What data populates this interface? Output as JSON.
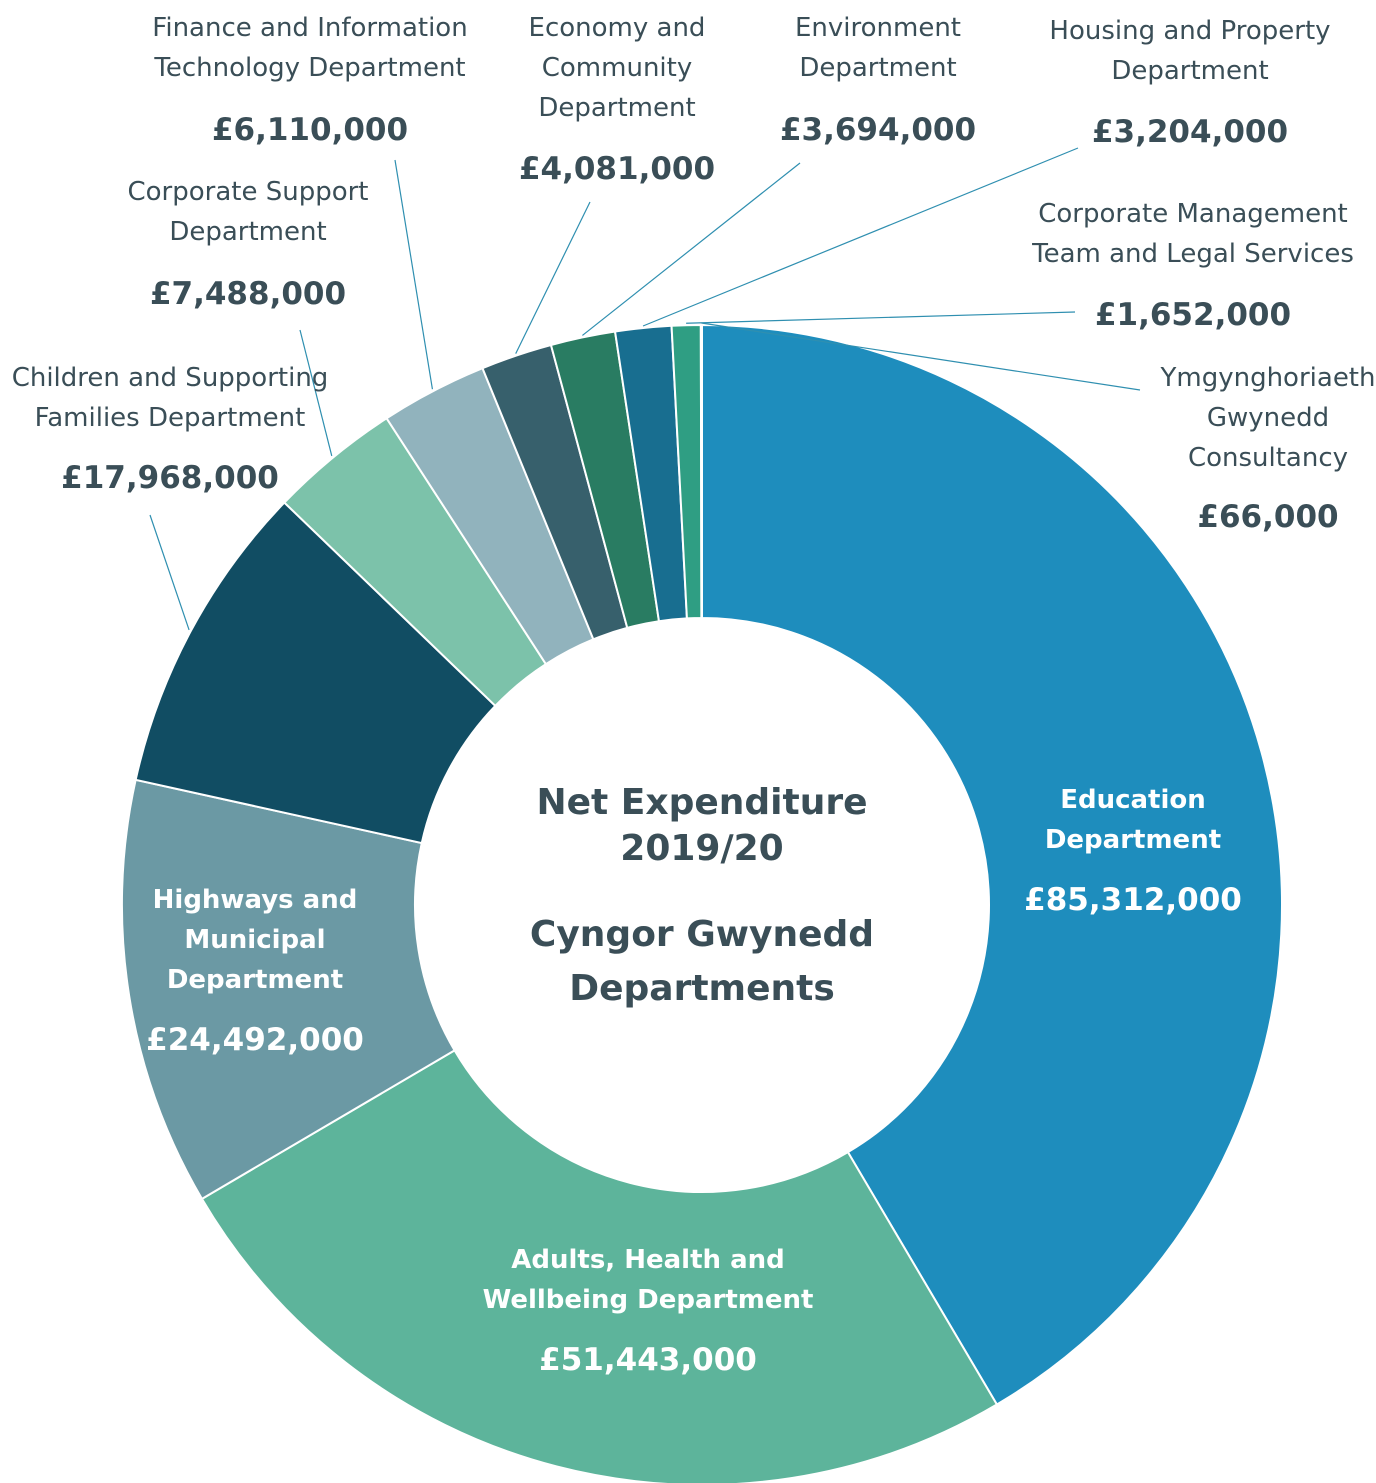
{
  "chart_data": {
    "type": "pie",
    "donut": true,
    "title": "Net Expenditure 2019/20",
    "subtitle": "Cyngor Gwynedd Departments",
    "categories": [
      "Education Department",
      "Adults, Health and Wellbeing Department",
      "Highways and Municipal Department",
      "Children and Supporting Families Department",
      "Corporate Support Department",
      "Finance and Information Technology Department",
      "Economy and Community Department",
      "Environment Department",
      "Housing and Property Department",
      "Corporate Management Team and Legal Services",
      "Ymgynghoriaeth Gwynedd Consultancy"
    ],
    "values": [
      85312000,
      51443000,
      24492000,
      17968000,
      7488000,
      6110000,
      4081000,
      3694000,
      3204000,
      1652000,
      66000
    ],
    "value_labels": [
      "£85,312,000",
      "£51,443,000",
      "£24,492,000",
      "£17,968,000",
      "£7,488,000",
      "£6,110,000",
      "£4,081,000",
      "£3,694,000",
      "£3,204,000",
      "£1,652,000",
      "£66,000"
    ],
    "colors": [
      "#1e8dbd",
      "#5db49b",
      "#6b99a4",
      "#114d63",
      "#7cc2aa",
      "#91b3bd",
      "#37606c",
      "#297c62",
      "#186e90",
      "#2f9e83",
      "#2b8f9a"
    ]
  }
}
